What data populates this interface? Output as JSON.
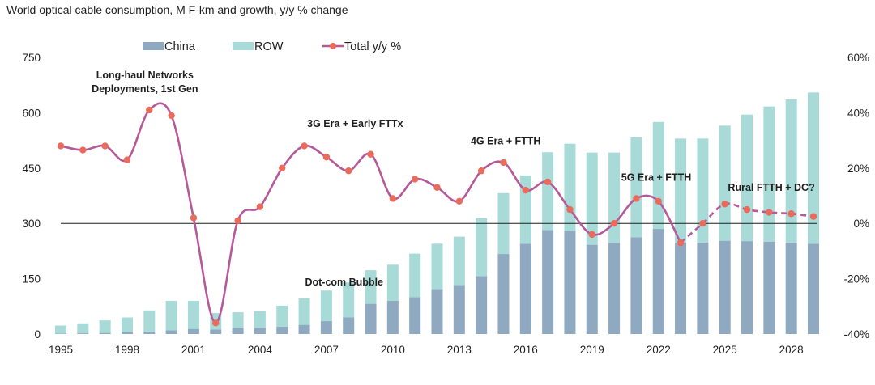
{
  "chart_data": {
    "type": "bar+line",
    "title": "World optical cable consumption, M F-km and growth, y/y % change",
    "years": [
      1995,
      1996,
      1997,
      1998,
      1999,
      2000,
      2001,
      2002,
      2003,
      2004,
      2005,
      2006,
      2007,
      2008,
      2009,
      2010,
      2011,
      2012,
      2013,
      2014,
      2015,
      2016,
      2017,
      2018,
      2019,
      2020,
      2021,
      2022,
      2023,
      2024,
      2025,
      2026,
      2027,
      2028,
      2029
    ],
    "x_tick_labels": [
      "1995",
      "1998",
      "2001",
      "2004",
      "2007",
      "2010",
      "2013",
      "2016",
      "2019",
      "2022",
      "2025",
      "2028"
    ],
    "left_axis": {
      "ylim": [
        0,
        750
      ],
      "ticks": [
        "0",
        "150",
        "300",
        "450",
        "600",
        "750"
      ]
    },
    "right_axis": {
      "ylim": [
        -40,
        60
      ],
      "ticks": [
        "-40%",
        "-20%",
        "0%",
        "20%",
        "40%",
        "60%"
      ]
    },
    "reference_line_pct": 0,
    "series": [
      {
        "name": "China",
        "type": "stacked-bar",
        "color": "#8fa9c1",
        "values": [
          1,
          2,
          3,
          5,
          7,
          10,
          14,
          12,
          16,
          17,
          20,
          25,
          35,
          45,
          82,
          90,
          100,
          122,
          133,
          157,
          217,
          245,
          282,
          280,
          242,
          247,
          262,
          285,
          248,
          248,
          253,
          252,
          250,
          248,
          245
        ]
      },
      {
        "name": "ROW",
        "type": "stacked-bar",
        "color": "#a8dbd8",
        "values": [
          22,
          27,
          34,
          40,
          57,
          80,
          76,
          45,
          43,
          45,
          57,
          72,
          83,
          95,
          91,
          98,
          118,
          123,
          131,
          157,
          165,
          185,
          211,
          236,
          250,
          245,
          271,
          290,
          282,
          282,
          312,
          343,
          367,
          388,
          410
        ]
      },
      {
        "name": "Total y/y %",
        "type": "line",
        "color": "#b6599a",
        "marker_color": "#ea6a5b",
        "axis": "right",
        "projected_from": 2023,
        "values": [
          28,
          26.5,
          28,
          23,
          41,
          39,
          2,
          -36,
          1,
          6,
          20,
          28,
          24,
          19,
          25,
          9,
          16,
          13,
          8,
          19,
          22,
          12,
          15,
          5,
          -4,
          0,
          9,
          8,
          -7,
          0,
          7,
          5,
          4,
          3.5,
          2.5
        ]
      }
    ],
    "legend": {
      "position": "top",
      "labels": [
        "China",
        "ROW",
        "Total y/y %"
      ]
    },
    "annotations": [
      {
        "text": "Long-haul Networks",
        "year": 1998.8,
        "value": 693
      },
      {
        "text": "Deployments, 1st Gen",
        "year": 1998.8,
        "value": 656
      },
      {
        "text": "Dot-com Bubble",
        "year": 2007.8,
        "value": 132
      },
      {
        "text": "3G Era + Early FTTx",
        "year": 2008.3,
        "value": 561
      },
      {
        "text": "4G Era + FTTH",
        "year": 2015.1,
        "value": 514
      },
      {
        "text": "5G Era + FTTH",
        "year": 2021.9,
        "value": 416
      },
      {
        "text": "Rural FTTH + DC?",
        "year": 2027.1,
        "value": 388
      }
    ]
  }
}
